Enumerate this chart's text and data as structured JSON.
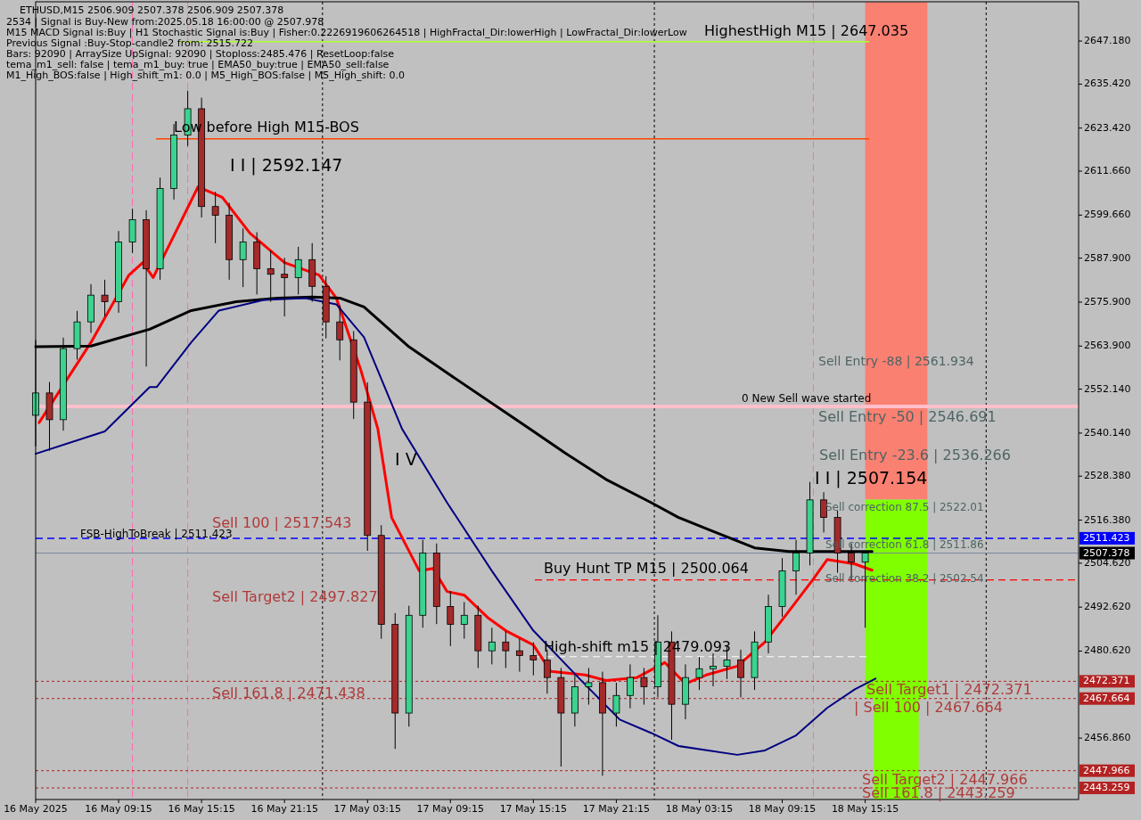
{
  "chart_data": {
    "type": "candlestick",
    "title": "ETHUSD,M15  2506.909 2507.378 2506.909 2507.378",
    "xlim": [
      "2025-05-16T03:15",
      "2025-05-19T06:45"
    ],
    "xticks": [
      {
        "value": "2025-05-16T03:15",
        "label": "16 May 2025"
      },
      {
        "value": "2025-05-16T09:15",
        "label": "16 May 09:15"
      },
      {
        "value": "2025-05-16T15:15",
        "label": "16 May 15:15"
      },
      {
        "value": "2025-05-16T21:15",
        "label": "16 May 21:15"
      },
      {
        "value": "2025-05-17T03:15",
        "label": "17 May 03:15"
      },
      {
        "value": "2025-05-17T09:15",
        "label": "17 May 09:15"
      },
      {
        "value": "2025-05-17T15:15",
        "label": "17 May 15:15"
      },
      {
        "value": "2025-05-17T21:15",
        "label": "17 May 21:15"
      },
      {
        "value": "2025-05-18T03:15",
        "label": "18 May 03:15"
      },
      {
        "value": "2025-05-18T09:15",
        "label": "18 May 09:15"
      },
      {
        "value": "2025-05-18T15:15",
        "label": "18 May 15:15"
      }
    ],
    "ylim": [
      2440.1,
      2657.9
    ],
    "yticks": [
      {
        "value": 2647.18,
        "label": "2647.180"
      },
      {
        "value": 2635.42,
        "label": "2635.420"
      },
      {
        "value": 2623.42,
        "label": "2623.420"
      },
      {
        "value": 2611.66,
        "label": "2611.660"
      },
      {
        "value": 2599.66,
        "label": "2599.660"
      },
      {
        "value": 2587.9,
        "label": "2587.900"
      },
      {
        "value": 2575.9,
        "label": "2575.900"
      },
      {
        "value": 2563.9,
        "label": "2563.900"
      },
      {
        "value": 2552.14,
        "label": "2552.140"
      },
      {
        "value": 2540.14,
        "label": "2540.140"
      },
      {
        "value": 2528.38,
        "label": "2528.380"
      },
      {
        "value": 2516.38,
        "label": "2516.380"
      },
      {
        "value": 2504.62,
        "label": "2504.620"
      },
      {
        "value": 2492.62,
        "label": "2492.620"
      },
      {
        "value": 2480.62,
        "label": "2480.620"
      },
      {
        "value": 2456.86,
        "label": "2456.860"
      }
    ],
    "series": [
      {
        "type": "bar",
        "x": [
          "2025-05-18T17:30"
        ],
        "base": [
          2522.01
        ],
        "values": [
          135.8
        ],
        "color": "#fa8072"
      },
      {
        "type": "bar",
        "x": [
          "2025-05-18T17:30"
        ],
        "base": [
          2467.664
        ],
        "values": [
          54.3
        ],
        "color": "#7fff00"
      },
      {
        "type": "bar",
        "x": [
          "2025-05-18T17:30"
        ],
        "base": [
          2440.1
        ],
        "values": [
          27.6
        ],
        "color": "#7fff00"
      },
      {
        "x": [
          "2025-05-16T03:15",
          "2025-05-16T04:15",
          "2025-05-16T05:15",
          "2025-05-16T06:15",
          "2025-05-16T07:15",
          "2025-05-16T08:15",
          "2025-05-16T09:15",
          "2025-05-16T10:15",
          "2025-05-16T11:15",
          "2025-05-16T12:15",
          "2025-05-16T13:15",
          "2025-05-16T14:15",
          "2025-05-16T15:15",
          "2025-05-16T16:15",
          "2025-05-16T17:15",
          "2025-05-16T18:15",
          "2025-05-16T19:15",
          "2025-05-16T20:15",
          "2025-05-16T21:15",
          "2025-05-16T22:15",
          "2025-05-16T23:15",
          "2025-05-17T00:15",
          "2025-05-17T01:15",
          "2025-05-17T02:15",
          "2025-05-17T03:15",
          "2025-05-17T04:15",
          "2025-05-17T05:15",
          "2025-05-17T06:15",
          "2025-05-17T07:15",
          "2025-05-17T08:15",
          "2025-05-17T09:15",
          "2025-05-17T10:15",
          "2025-05-17T11:15",
          "2025-05-17T12:15",
          "2025-05-17T13:15",
          "2025-05-17T14:15",
          "2025-05-17T15:15",
          "2025-05-17T16:15",
          "2025-05-17T17:15",
          "2025-05-17T18:15",
          "2025-05-17T19:15",
          "2025-05-17T20:15",
          "2025-05-17T21:15",
          "2025-05-17T22:15",
          "2025-05-17T23:15",
          "2025-05-18T00:15",
          "2025-05-18T01:15",
          "2025-05-18T02:15",
          "2025-05-18T03:15",
          "2025-05-18T04:15",
          "2025-05-18T05:15",
          "2025-05-18T06:15",
          "2025-05-18T07:15",
          "2025-05-18T08:15",
          "2025-05-18T09:15",
          "2025-05-18T10:15",
          "2025-05-18T11:15",
          "2025-05-18T12:15",
          "2025-05-18T13:15",
          "2025-05-18T14:15",
          "2025-05-18T15:15"
        ],
        "ohlc": [
          [
            2545.0,
            2565.6,
            2536.5,
            2551.1
          ],
          [
            2551.1,
            2554.1,
            2535.3,
            2543.8
          ],
          [
            2543.8,
            2566.2,
            2540.8,
            2563.2
          ],
          [
            2563.2,
            2573.5,
            2560.2,
            2570.5
          ],
          [
            2570.5,
            2580.8,
            2567.5,
            2577.8
          ],
          [
            2577.8,
            2582.0,
            2572.0,
            2576.0
          ],
          [
            2576.0,
            2595.3,
            2573.0,
            2592.3
          ],
          [
            2592.3,
            2601.4,
            2589.3,
            2598.4
          ],
          [
            2598.4,
            2601.0,
            2558.3,
            2585.0
          ],
          [
            2585.0,
            2609.9,
            2582.0,
            2606.9
          ],
          [
            2606.9,
            2624.5,
            2603.9,
            2621.5
          ],
          [
            2621.5,
            2633.6,
            2618.5,
            2628.7
          ],
          [
            2628.7,
            2631.7,
            2599.0,
            2602.0
          ],
          [
            2602.0,
            2606.0,
            2592.0,
            2599.6
          ],
          [
            2599.6,
            2603.0,
            2582.0,
            2587.5
          ],
          [
            2587.5,
            2596.0,
            2580.0,
            2592.3
          ],
          [
            2592.3,
            2595.0,
            2578.0,
            2585.0
          ],
          [
            2585.0,
            2590.0,
            2576.0,
            2583.5
          ],
          [
            2583.5,
            2588.0,
            2572.0,
            2582.6
          ],
          [
            2582.6,
            2591.0,
            2578.0,
            2587.5
          ],
          [
            2587.5,
            2592.0,
            2576.0,
            2580.2
          ],
          [
            2580.2,
            2583.0,
            2566.0,
            2570.5
          ],
          [
            2570.5,
            2575.0,
            2560.0,
            2565.6
          ],
          [
            2565.6,
            2568.0,
            2544.0,
            2548.6
          ],
          [
            2548.6,
            2554.0,
            2508.0,
            2512.2
          ],
          [
            2512.2,
            2515.0,
            2484.0,
            2487.9
          ],
          [
            2487.9,
            2491.0,
            2453.9,
            2463.7
          ],
          [
            2463.7,
            2493.0,
            2460.0,
            2490.4
          ],
          [
            2490.4,
            2511.0,
            2487.0,
            2507.4
          ],
          [
            2507.4,
            2510.0,
            2488.0,
            2492.8
          ],
          [
            2492.8,
            2497.0,
            2482.0,
            2487.9
          ],
          [
            2487.9,
            2494.0,
            2484.0,
            2490.4
          ],
          [
            2490.4,
            2493.0,
            2476.0,
            2480.7
          ],
          [
            2480.7,
            2487.0,
            2477.0,
            2483.1
          ],
          [
            2483.1,
            2486.0,
            2476.0,
            2480.7
          ],
          [
            2480.7,
            2484.0,
            2475.0,
            2479.4
          ],
          [
            2479.4,
            2483.0,
            2474.0,
            2478.2
          ],
          [
            2478.2,
            2481.0,
            2469.0,
            2473.4
          ],
          [
            2473.4,
            2476.0,
            2449.1,
            2463.7
          ],
          [
            2463.7,
            2474.0,
            2460.0,
            2470.9
          ],
          [
            2470.9,
            2476.0,
            2466.0,
            2472.0
          ],
          [
            2472.0,
            2475.0,
            2446.6,
            2463.7
          ],
          [
            2463.7,
            2472.0,
            2460.0,
            2468.5
          ],
          [
            2468.5,
            2477.0,
            2465.0,
            2473.4
          ],
          [
            2473.4,
            2476.0,
            2466.0,
            2470.9
          ],
          [
            2470.9,
            2490.4,
            2468.0,
            2483.1
          ],
          [
            2483.1,
            2486.0,
            2456.4,
            2466.1
          ],
          [
            2466.1,
            2477.0,
            2462.0,
            2473.4
          ],
          [
            2473.4,
            2479.0,
            2470.0,
            2475.8
          ],
          [
            2475.8,
            2480.0,
            2471.0,
            2476.5
          ],
          [
            2476.5,
            2482.0,
            2473.0,
            2478.2
          ],
          [
            2478.2,
            2481.0,
            2468.0,
            2473.4
          ],
          [
            2473.4,
            2486.0,
            2470.0,
            2483.1
          ],
          [
            2483.1,
            2496.0,
            2480.0,
            2492.8
          ],
          [
            2492.8,
            2506.0,
            2490.0,
            2502.5
          ],
          [
            2502.5,
            2511.0,
            2496.0,
            2507.4
          ],
          [
            2507.4,
            2526.8,
            2504.0,
            2521.9
          ],
          [
            2521.9,
            2524.0,
            2513.0,
            2517.1
          ],
          [
            2517.1,
            2519.0,
            2502.0,
            2507.4
          ],
          [
            2507.4,
            2510.0,
            2500.0,
            2504.9
          ],
          [
            2504.9,
            2508.0,
            2487.0,
            2507.4
          ]
        ]
      },
      {
        "type": "line",
        "color": "#ff0000",
        "x": [
          "2025-05-16T03:30",
          "2025-05-16T07:15",
          "2025-05-16T10:00",
          "2025-05-16T11:00",
          "2025-05-16T11:45",
          "2025-05-16T15:00",
          "2025-05-16T16:45",
          "2025-05-16T18:45",
          "2025-05-16T21:15",
          "2025-05-16T23:45",
          "2025-05-17T01:00",
          "2025-05-17T02:45",
          "2025-05-17T04:00",
          "2025-05-17T05:00",
          "2025-05-17T07:00",
          "2025-05-17T08:00",
          "2025-05-17T09:00",
          "2025-05-17T10:15",
          "2025-05-17T12:00",
          "2025-05-17T13:15",
          "2025-05-17T15:15",
          "2025-05-17T16:30",
          "2025-05-17T19:00",
          "2025-05-17T20:30",
          "2025-05-17T22:45",
          "2025-05-18T00:45",
          "2025-05-18T02:15",
          "2025-05-18T03:45",
          "2025-05-18T06:00",
          "2025-05-18T08:00",
          "2025-05-18T09:30",
          "2025-05-18T11:30",
          "2025-05-18T12:30",
          "2025-05-18T14:30",
          "2025-05-18T15:45"
        ],
        "values": [
          2543.0,
          2564.9,
          2583.3,
          2586.7,
          2582.6,
          2607.4,
          2604.5,
          2594.7,
          2586.7,
          2583.3,
          2577.0,
          2557.6,
          2541.3,
          2517.1,
          2502.5,
          2503.2,
          2496.9,
          2495.9,
          2489.6,
          2486.2,
          2482.3,
          2475.1,
          2474.1,
          2472.6,
          2473.4,
          2477.5,
          2471.7,
          2474.1,
          2476.5,
          2483.1,
          2490.4,
          2500.3,
          2505.6,
          2504.4,
          2502.7
        ]
      },
      {
        "type": "line",
        "color": "#000000",
        "x": [
          "2025-05-16T03:15",
          "2025-05-16T07:15",
          "2025-05-16T11:30",
          "2025-05-16T14:30",
          "2025-05-16T17:45",
          "2025-05-16T20:45",
          "2025-05-16T23:15",
          "2025-05-17T01:15",
          "2025-05-17T03:00",
          "2025-05-17T06:15",
          "2025-05-17T09:00",
          "2025-05-17T15:00",
          "2025-05-17T17:30",
          "2025-05-17T20:30",
          "2025-05-17T23:45",
          "2025-05-18T01:45",
          "2025-05-18T04:00",
          "2025-05-18T07:15",
          "2025-05-18T09:45",
          "2025-05-18T15:45"
        ],
        "values": [
          2563.7,
          2563.9,
          2568.5,
          2573.6,
          2576.0,
          2577.0,
          2577.3,
          2577.0,
          2574.6,
          2563.7,
          2556.6,
          2541.3,
          2534.8,
          2527.5,
          2521.2,
          2517.1,
          2513.7,
          2508.8,
          2507.8,
          2507.8
        ]
      },
      {
        "type": "line",
        "color": "#000080",
        "x": [
          "2025-05-16T03:15",
          "2025-05-16T07:15",
          "2025-05-16T08:15",
          "2025-05-16T11:30",
          "2025-05-16T12:00",
          "2025-05-16T14:30",
          "2025-05-16T16:30",
          "2025-05-16T19:45",
          "2025-05-16T22:45",
          "2025-05-17T01:00",
          "2025-05-17T03:00",
          "2025-05-17T05:45",
          "2025-05-17T09:00",
          "2025-05-17T12:15",
          "2025-05-17T15:15",
          "2025-05-17T18:30",
          "2025-05-17T21:30",
          "2025-05-17T23:45",
          "2025-05-18T01:45",
          "2025-05-18T06:00",
          "2025-05-18T08:00",
          "2025-05-18T10:15",
          "2025-05-18T12:30",
          "2025-05-18T14:30",
          "2025-05-18T16:00"
        ],
        "values": [
          2534.5,
          2539.4,
          2540.6,
          2552.7,
          2552.7,
          2564.9,
          2573.6,
          2576.5,
          2577.0,
          2575.3,
          2566.3,
          2541.3,
          2521.2,
          2502.5,
          2486.2,
          2473.4,
          2461.9,
          2458.3,
          2454.7,
          2452.3,
          2453.5,
          2457.6,
          2465.1,
          2470.2,
          2473.1
        ]
      }
    ],
    "ref_lines": [
      {
        "axis": "y",
        "value": 2647.035,
        "label": "HighestHigh   M15 | 2647.035",
        "color": "#adff2f"
      },
      {
        "axis": "y",
        "value": 2620.5,
        "label": "Low before High   M15-BOS",
        "color": "#ff4500"
      },
      {
        "axis": "y",
        "value": 2547.4,
        "label": "0 New Sell wave started",
        "color": "#ffc0cb"
      },
      {
        "axis": "y",
        "value": 2511.423,
        "label": "2511.423",
        "color": "#0000ff",
        "line_style": "dashed"
      },
      {
        "axis": "y",
        "value": 2507.378,
        "label": "2507.378",
        "color": "#778899"
      },
      {
        "axis": "y",
        "value": 2500.064,
        "label": "Buy Hunt TP M15 | 2500.064",
        "color": "#ff0000",
        "line_style": "dashed"
      },
      {
        "axis": "y",
        "value": 2479.093,
        "label": "High-shift m15 | 2479.093",
        "color": "#ffffff",
        "line_style": "dashed"
      },
      {
        "axis": "y",
        "value": 2472.371,
        "label": "2472.371",
        "color": "#b22222",
        "line_style": "dotted"
      },
      {
        "axis": "y",
        "value": 2467.664,
        "label": "2467.664",
        "color": "#b22222",
        "line_style": "dotted"
      },
      {
        "axis": "y",
        "value": 2447.966,
        "label": "2447.966",
        "color": "#b22222",
        "line_style": "dotted"
      },
      {
        "axis": "y",
        "value": 2443.259,
        "label": "2443.259",
        "color": "#b22222",
        "line_style": "dotted"
      },
      {
        "axis": "x",
        "value": "2025-05-17T00:00",
        "label": null,
        "color": "#000000",
        "line_style": "dotted"
      },
      {
        "axis": "x",
        "value": "2025-05-18T00:00",
        "label": null,
        "color": "#000000",
        "line_style": "dotted"
      },
      {
        "axis": "x",
        "value": "2025-05-19T00:00",
        "label": null,
        "color": "#000000",
        "line_style": "dotted"
      },
      {
        "axis": "x",
        "value": "2025-05-16T10:15",
        "label": null,
        "color": "#ff69b4",
        "line_style": "dashed"
      },
      {
        "axis": "x",
        "value": "2025-05-16T14:15",
        "label": null,
        "color": "#ff69b4",
        "line_style": "dashed"
      },
      {
        "axis": "x",
        "value": "2025-05-18T11:30",
        "label": null,
        "color": "#ff69b4",
        "line_style": "dashed"
      }
    ],
    "annotations": [
      "2534 | Signal is Buy-New from:2025.05.18 16:00:00 @ 2507.978",
      "M15 MACD Signal is:Buy | H1 Stochastic Signal is:Buy | Fisher:0.2226919606264518 | HighFractal_Dir:lowerHigh | LowFractal_Dir:lowerLow",
      "Previous Signal :Buy-Stop-candle2 from: 2515.722",
      "Bars: 92090 | ArraySize UpSignal: 92090 | Stoploss:2485.476 | ResetLoop:false",
      "tema_m1_sell: false | tema_m1_buy: true | EMA50_buy:true | EMA50_sell:false",
      "M1_High_BOS:false | High_shift_m1: 0.0 | M5_High_BOS:false | M5_High_shift: 0.0",
      "Sell 100 | 2517.543",
      "Sell Target2 | 2497.827",
      "Sell 161.8 | 2471.438",
      "I I | 2592.147",
      "I V",
      "Sell Entry -88 | 2561.934",
      "Sell Entry -50 | 2546.691",
      "Sell Entry -23.6 | 2536.266",
      "I I | 2507.154",
      "Sell correction 87.5 | 2522.01",
      "Sell correction 61.8 | 2511.86",
      "Sell correction 38.2 | 2502.54",
      "Sell Target1 | 2472.371",
      "| Sell 100 | 2467.664",
      "Sell Target2 | 2447.966",
      "Sell 161.8 | 2443.259",
      "FSB-HighToBreak | 2511.423"
    ]
  }
}
